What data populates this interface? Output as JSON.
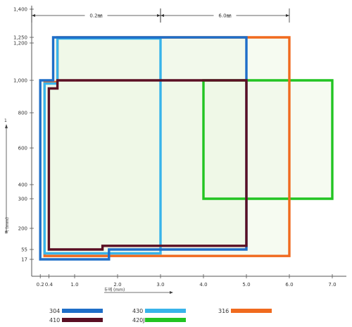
{
  "chart_data": {
    "type": "area",
    "x_ticks": [
      "0.2",
      "0.4",
      "1.0",
      "2.0",
      "3.0",
      "4.0",
      "5.0",
      "6.0",
      "7.0"
    ],
    "x_tick_values": [
      0.2,
      0.4,
      1.0,
      2.0,
      3.0,
      4.0,
      5.0,
      6.0,
      7.0
    ],
    "y_ticks": [
      "1,400",
      "1,250",
      "1,200",
      "1,000",
      "800",
      "600",
      "400",
      "300",
      "200",
      "55",
      "17"
    ],
    "y_tick_values": [
      1400,
      1250,
      1200,
      1000,
      800,
      600,
      400,
      300,
      200,
      55,
      17
    ],
    "xlabel": "두께 (mm)",
    "ylabel": "폭 (mm)",
    "y_arrow_label": "1",
    "annotations": [
      {
        "text": "0.2㎜",
        "from": 0.0,
        "to": 3.0
      },
      {
        "text": "6.0㎜",
        "from": 3.0,
        "to": 6.0
      }
    ],
    "series": [
      {
        "name": "304",
        "color": "#1e6ec8",
        "region": [
          [
            0.2,
            17
          ],
          [
            1.8,
            17
          ],
          [
            1.8,
            55
          ],
          [
            5.0,
            55
          ],
          [
            5.0,
            1250
          ],
          [
            0.5,
            1250
          ],
          [
            0.5,
            1000
          ],
          [
            0.2,
            1000
          ]
        ]
      },
      {
        "name": "410",
        "color": "#5a0f23",
        "region": [
          [
            0.4,
            55
          ],
          [
            1.65,
            55
          ],
          [
            1.65,
            80
          ],
          [
            5.0,
            80
          ],
          [
            5.0,
            1000
          ],
          [
            0.6,
            1000
          ],
          [
            0.6,
            950
          ],
          [
            0.4,
            950
          ]
        ]
      },
      {
        "name": "430",
        "color": "#38b4ea",
        "region": [
          [
            0.3,
            40
          ],
          [
            3.0,
            40
          ],
          [
            3.0,
            1240
          ],
          [
            0.6,
            1240
          ],
          [
            0.6,
            980
          ],
          [
            0.3,
            980
          ]
        ]
      },
      {
        "name": "420J1",
        "color": "#22c422",
        "region": [
          [
            4.0,
            300
          ],
          [
            7.0,
            300
          ],
          [
            7.0,
            1000
          ],
          [
            4.0,
            1000
          ]
        ]
      },
      {
        "name": "316",
        "color": "#f06a1e",
        "region": [
          [
            0.3,
            30
          ],
          [
            6.0,
            30
          ],
          [
            6.0,
            1250
          ],
          [
            0.6,
            1250
          ],
          [
            0.6,
            990
          ],
          [
            0.3,
            990
          ]
        ]
      }
    ],
    "legend": [
      {
        "label": "304",
        "color": "#1e6ec8"
      },
      {
        "label": "410",
        "color": "#5a0f23"
      },
      {
        "label": "430",
        "color": "#38b4ea"
      },
      {
        "label": "420J1",
        "color": "#22c422"
      },
      {
        "label": "316",
        "color": "#f06a1e"
      }
    ]
  }
}
